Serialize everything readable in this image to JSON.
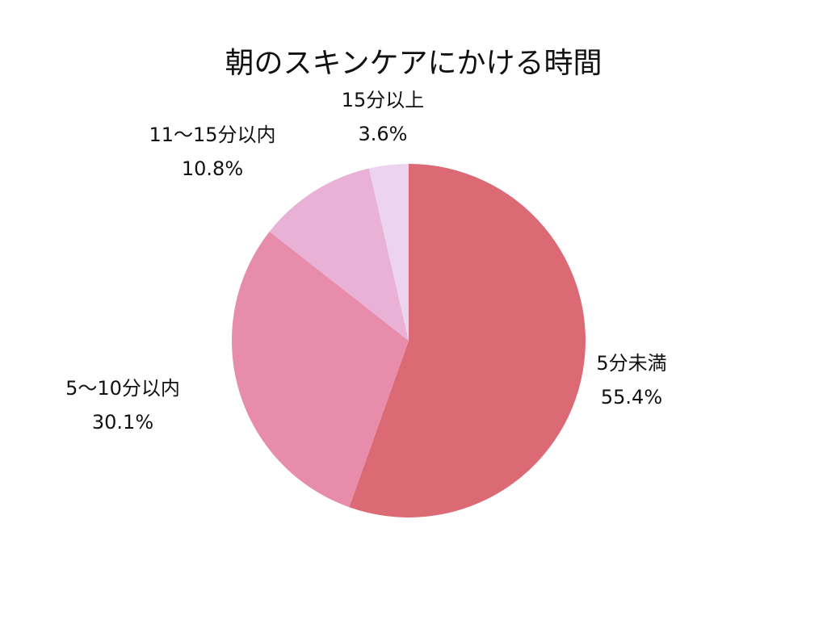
{
  "chart_data": {
    "type": "pie",
    "title": "朝のスキンケアにかける時間",
    "legend": "none",
    "slices": [
      {
        "label": "5分未満",
        "value": 55.4,
        "value_label": "55.4%",
        "color": "#dc6a74"
      },
      {
        "label": "5〜10分以内",
        "value": 30.1,
        "value_label": "30.1%",
        "color": "#e78dab"
      },
      {
        "label": "11〜15分以内",
        "value": 10.8,
        "value_label": "10.8%",
        "color": "#e8b1d5"
      },
      {
        "label": "15分以上",
        "value": 3.6,
        "value_label": "3.6%",
        "color": "#ecd3ee"
      }
    ]
  }
}
